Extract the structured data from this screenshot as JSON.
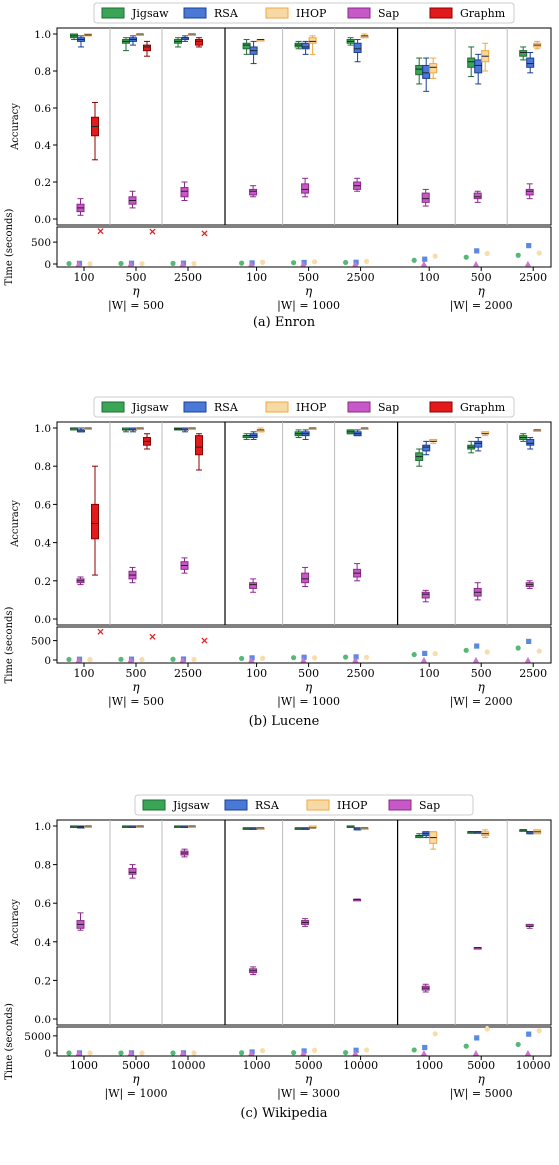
{
  "colors": {
    "jigsaw": "#3aa655",
    "rsa": "#4a78d6",
    "ihop": "#f7d9a6",
    "ihop_edge": "#f0a640",
    "sap": "#c758c7",
    "graphm": "#e31a1c",
    "separator_light": "#bbbbbb"
  },
  "chart_data": [
    {
      "type": "box",
      "title": "",
      "caption": "(a)  Enron",
      "legend": [
        "Jigsaw",
        "RSA",
        "IHOP",
        "Sap",
        "Graphm"
      ],
      "legend_position": "top",
      "accuracy_ylabel": "Accuracy",
      "time_ylabel": "Time (seconds)",
      "xlabel": "η",
      "accuracy_ylim": [
        0,
        1
      ],
      "accuracy_ticks": [
        "0.0",
        "0.2",
        "0.4",
        "0.6",
        "0.8",
        "1.0"
      ],
      "time_ylim": [
        0,
        800
      ],
      "time_ticks": [
        "0",
        "500"
      ],
      "groups": [
        {
          "label": "|W| = 500",
          "eta": [
            "100",
            "500",
            "2500"
          ]
        },
        {
          "label": "|W| = 1000",
          "eta": [
            "100",
            "500",
            "2500"
          ]
        },
        {
          "label": "|W| = 2000",
          "eta": [
            "100",
            "500",
            "2500"
          ]
        }
      ],
      "accuracy": {
        "Jigsaw": [
          [
            0.99,
            0.98,
            1.0,
            0.97,
            1.0
          ],
          [
            0.96,
            0.95,
            0.97,
            0.91,
            0.98
          ],
          [
            0.96,
            0.95,
            0.97,
            0.93,
            0.98
          ],
          [
            0.94,
            0.92,
            0.95,
            0.89,
            0.97
          ],
          [
            0.94,
            0.93,
            0.95,
            0.92,
            0.96
          ],
          [
            0.96,
            0.95,
            0.97,
            0.94,
            0.98
          ],
          [
            0.81,
            0.78,
            0.83,
            0.73,
            0.87
          ],
          [
            0.85,
            0.82,
            0.87,
            0.77,
            0.93
          ],
          [
            0.9,
            0.88,
            0.91,
            0.86,
            0.93
          ]
        ],
        "RSA": [
          [
            0.97,
            0.96,
            0.98,
            0.93,
            0.99
          ],
          [
            0.97,
            0.96,
            0.98,
            0.94,
            0.99
          ],
          [
            0.98,
            0.97,
            0.98,
            0.96,
            0.99
          ],
          [
            0.91,
            0.89,
            0.93,
            0.84,
            0.96
          ],
          [
            0.93,
            0.92,
            0.95,
            0.89,
            0.96
          ],
          [
            0.92,
            0.9,
            0.95,
            0.85,
            0.97
          ],
          [
            0.79,
            0.76,
            0.83,
            0.69,
            0.87
          ],
          [
            0.83,
            0.79,
            0.86,
            0.73,
            0.89
          ],
          [
            0.84,
            0.82,
            0.87,
            0.79,
            0.9
          ]
        ],
        "IHOP": [
          [
            0.995,
            0.99,
            1.0,
            0.99,
            1.0
          ],
          [
            1.0,
            1.0,
            1.0,
            1.0,
            1.0
          ],
          [
            1.0,
            1.0,
            1.0,
            1.0,
            1.0
          ],
          [
            0.97,
            0.97,
            0.97,
            0.97,
            0.97
          ],
          [
            0.96,
            0.95,
            0.98,
            0.89,
            0.99
          ],
          [
            0.99,
            0.98,
            0.99,
            0.98,
            1.0
          ],
          [
            0.82,
            0.79,
            0.84,
            0.76,
            0.87
          ],
          [
            0.88,
            0.85,
            0.91,
            0.8,
            0.95
          ],
          [
            0.94,
            0.93,
            0.95,
            0.92,
            0.96
          ]
        ],
        "Sap": [
          [
            0.06,
            0.04,
            0.08,
            0.02,
            0.11
          ],
          [
            0.1,
            0.08,
            0.12,
            0.06,
            0.15
          ],
          [
            0.15,
            0.12,
            0.17,
            0.1,
            0.2
          ],
          [
            0.15,
            0.13,
            0.16,
            0.12,
            0.18
          ],
          [
            0.16,
            0.14,
            0.19,
            0.12,
            0.22
          ],
          [
            0.18,
            0.16,
            0.2,
            0.15,
            0.22
          ],
          [
            0.11,
            0.09,
            0.14,
            0.07,
            0.16
          ],
          [
            0.12,
            0.11,
            0.14,
            0.09,
            0.15
          ],
          [
            0.15,
            0.13,
            0.16,
            0.11,
            0.19
          ]
        ],
        "Graphm": [
          [
            0.5,
            0.45,
            0.55,
            0.32,
            0.63
          ],
          [
            0.93,
            0.91,
            0.94,
            0.88,
            0.96
          ],
          [
            0.96,
            0.94,
            0.97,
            0.93,
            0.98
          ],
          null,
          null,
          null,
          null,
          null,
          null
        ]
      },
      "time": {
        "Jigsaw": [
          10,
          12,
          14,
          20,
          30,
          35,
          85,
          155,
          200
        ],
        "RSA": [
          15,
          18,
          20,
          25,
          35,
          40,
          110,
          300,
          420
        ],
        "IHOP": [
          5,
          7,
          10,
          40,
          50,
          60,
          180,
          240,
          250
        ],
        "Sap": [
          2,
          2,
          2,
          3,
          3,
          3,
          3,
          3,
          3
        ],
        "Graphm": [
          750,
          740,
          700,
          null,
          null,
          null,
          null,
          null,
          null
        ]
      }
    },
    {
      "type": "box",
      "title": "",
      "caption": "(b)  Lucene",
      "legend": [
        "Jigsaw",
        "RSA",
        "IHOP",
        "Sap",
        "Graphm"
      ],
      "legend_position": "top",
      "accuracy_ylabel": "Accuracy",
      "time_ylabel": "Time (seconds)",
      "xlabel": "η",
      "accuracy_ylim": [
        0,
        1
      ],
      "accuracy_ticks": [
        "0.0",
        "0.2",
        "0.4",
        "0.6",
        "0.8",
        "1.0"
      ],
      "time_ylim": [
        0,
        800
      ],
      "time_ticks": [
        "0",
        "500"
      ],
      "groups": [
        {
          "label": "|W| = 500",
          "eta": [
            "100",
            "500",
            "2500"
          ]
        },
        {
          "label": "|W| = 1000",
          "eta": [
            "100",
            "500",
            "2500"
          ]
        },
        {
          "label": "|W| = 2000",
          "eta": [
            "100",
            "500",
            "2500"
          ]
        }
      ],
      "accuracy": {
        "Jigsaw": [
          [
            1.0,
            0.99,
            1.0,
            0.99,
            1.0
          ],
          [
            0.99,
            0.99,
            1.0,
            0.98,
            1.0
          ],
          [
            0.995,
            0.99,
            1.0,
            0.99,
            1.0
          ],
          [
            0.96,
            0.95,
            0.96,
            0.94,
            0.97
          ],
          [
            0.97,
            0.96,
            0.98,
            0.95,
            0.99
          ],
          [
            0.98,
            0.97,
            0.99,
            0.97,
            0.99
          ],
          [
            0.85,
            0.83,
            0.87,
            0.8,
            0.89
          ],
          [
            0.9,
            0.89,
            0.91,
            0.87,
            0.93
          ],
          [
            0.95,
            0.94,
            0.96,
            0.93,
            0.97
          ]
        ],
        "RSA": [
          [
            0.99,
            0.98,
            0.99,
            0.98,
            1.0
          ],
          [
            0.99,
            0.99,
            1.0,
            0.98,
            1.0
          ],
          [
            0.99,
            0.99,
            1.0,
            0.98,
            1.0
          ],
          [
            0.96,
            0.95,
            0.97,
            0.94,
            0.98
          ],
          [
            0.97,
            0.96,
            0.98,
            0.94,
            0.99
          ],
          [
            0.97,
            0.96,
            0.98,
            0.96,
            0.99
          ],
          [
            0.9,
            0.88,
            0.91,
            0.86,
            0.93
          ],
          [
            0.92,
            0.9,
            0.93,
            0.88,
            0.95
          ],
          [
            0.92,
            0.91,
            0.94,
            0.89,
            0.95
          ]
        ],
        "IHOP": [
          [
            1.0,
            1.0,
            1.0,
            1.0,
            1.0
          ],
          [
            1.0,
            1.0,
            1.0,
            1.0,
            1.0
          ],
          [
            1.0,
            1.0,
            1.0,
            1.0,
            1.0
          ],
          [
            0.99,
            0.98,
            0.99,
            0.98,
            1.0
          ],
          [
            1.0,
            1.0,
            1.0,
            1.0,
            1.0
          ],
          [
            1.0,
            1.0,
            1.0,
            1.0,
            1.0
          ],
          [
            0.93,
            0.93,
            0.94,
            0.92,
            0.94
          ],
          [
            0.97,
            0.97,
            0.98,
            0.96,
            0.98
          ],
          [
            0.99,
            0.99,
            0.99,
            0.99,
            0.99
          ]
        ],
        "Sap": [
          [
            0.2,
            0.19,
            0.21,
            0.18,
            0.22
          ],
          [
            0.23,
            0.21,
            0.25,
            0.19,
            0.27
          ],
          [
            0.28,
            0.26,
            0.3,
            0.24,
            0.32
          ],
          [
            0.18,
            0.16,
            0.19,
            0.14,
            0.21
          ],
          [
            0.21,
            0.19,
            0.24,
            0.17,
            0.27
          ],
          [
            0.24,
            0.22,
            0.26,
            0.2,
            0.29
          ],
          [
            0.13,
            0.11,
            0.14,
            0.09,
            0.15
          ],
          [
            0.14,
            0.12,
            0.16,
            0.1,
            0.19
          ],
          [
            0.18,
            0.17,
            0.19,
            0.16,
            0.2
          ]
        ],
        "Graphm": [
          [
            0.5,
            0.42,
            0.6,
            0.23,
            0.8
          ],
          [
            0.93,
            0.91,
            0.95,
            0.89,
            0.97
          ],
          [
            0.9,
            0.86,
            0.96,
            0.78,
            0.97
          ],
          null,
          null,
          null,
          null,
          null,
          null
        ]
      },
      "time": {
        "Jigsaw": [
          15,
          18,
          20,
          40,
          60,
          75,
          140,
          250,
          310
        ],
        "RSA": [
          20,
          22,
          25,
          55,
          70,
          80,
          170,
          360,
          480
        ],
        "IHOP": [
          10,
          12,
          15,
          45,
          55,
          70,
          165,
          210,
          230
        ],
        "Sap": [
          2,
          2,
          2,
          3,
          3,
          3,
          3,
          3,
          3
        ],
        "Graphm": [
          730,
          600,
          500,
          null,
          null,
          null,
          null,
          null,
          null
        ]
      }
    },
    {
      "type": "box",
      "title": "",
      "caption": "(c)  Wikipedia",
      "legend": [
        "Jigsaw",
        "RSA",
        "IHOP",
        "Sap"
      ],
      "legend_position": "top",
      "accuracy_ylabel": "Accuracy",
      "time_ylabel": "Time (seconds)",
      "xlabel": "η",
      "accuracy_ylim": [
        0,
        1
      ],
      "accuracy_ticks": [
        "0.0",
        "0.2",
        "0.4",
        "0.6",
        "0.8",
        "1.0"
      ],
      "time_ylim": [
        0,
        7000
      ],
      "time_ticks": [
        "0",
        "5000"
      ],
      "groups": [
        {
          "label": "|W| = 1000",
          "eta": [
            "1000",
            "5000",
            "10000"
          ]
        },
        {
          "label": "|W| = 3000",
          "eta": [
            "1000",
            "5000",
            "10000"
          ]
        },
        {
          "label": "|W| = 5000",
          "eta": [
            "1000",
            "5000",
            "10000"
          ]
        }
      ],
      "accuracy": {
        "Jigsaw": [
          [
            1.0,
            1.0,
            1.0,
            1.0,
            1.0
          ],
          [
            1.0,
            1.0,
            1.0,
            1.0,
            1.0
          ],
          [
            1.0,
            1.0,
            1.0,
            1.0,
            1.0
          ],
          [
            0.99,
            0.99,
            0.99,
            0.99,
            0.99
          ],
          [
            0.99,
            0.99,
            0.99,
            0.99,
            0.99
          ],
          [
            1.0,
            1.0,
            1.0,
            1.0,
            1.0
          ],
          [
            0.95,
            0.94,
            0.95,
            0.94,
            0.96
          ],
          [
            0.97,
            0.97,
            0.97,
            0.97,
            0.97
          ],
          [
            0.98,
            0.98,
            0.98,
            0.98,
            0.98
          ]
        ],
        "RSA": [
          [
            0.995,
            0.99,
            1.0,
            0.99,
            1.0
          ],
          [
            1.0,
            1.0,
            1.0,
            1.0,
            1.0
          ],
          [
            1.0,
            1.0,
            1.0,
            1.0,
            1.0
          ],
          [
            0.99,
            0.99,
            0.99,
            0.99,
            0.99
          ],
          [
            0.99,
            0.99,
            0.99,
            0.99,
            0.99
          ],
          [
            0.99,
            0.98,
            0.99,
            0.98,
            0.99
          ],
          [
            0.96,
            0.95,
            0.97,
            0.94,
            0.97
          ],
          [
            0.97,
            0.97,
            0.97,
            0.97,
            0.97
          ],
          [
            0.97,
            0.96,
            0.97,
            0.96,
            0.97
          ]
        ],
        "IHOP": [
          [
            1.0,
            1.0,
            1.0,
            1.0,
            1.0
          ],
          [
            1.0,
            1.0,
            1.0,
            1.0,
            1.0
          ],
          [
            1.0,
            1.0,
            1.0,
            1.0,
            1.0
          ],
          [
            0.99,
            0.99,
            0.99,
            0.99,
            0.99
          ],
          [
            0.99,
            0.99,
            1.0,
            0.99,
            1.0
          ],
          [
            0.99,
            0.99,
            0.99,
            0.99,
            0.99
          ],
          [
            0.94,
            0.91,
            0.97,
            0.88,
            0.97
          ],
          [
            0.96,
            0.95,
            0.97,
            0.94,
            0.98
          ],
          [
            0.97,
            0.96,
            0.98,
            0.96,
            0.98
          ]
        ],
        "Sap": [
          [
            0.49,
            0.47,
            0.51,
            0.46,
            0.55
          ],
          [
            0.76,
            0.75,
            0.78,
            0.73,
            0.8
          ],
          [
            0.86,
            0.85,
            0.87,
            0.84,
            0.88
          ],
          [
            0.25,
            0.24,
            0.26,
            0.23,
            0.27
          ],
          [
            0.5,
            0.49,
            0.51,
            0.48,
            0.52
          ],
          [
            0.62,
            0.62,
            0.62,
            0.62,
            0.62
          ],
          [
            0.16,
            0.15,
            0.17,
            0.14,
            0.18
          ],
          [
            0.37,
            0.37,
            0.37,
            0.37,
            0.37
          ],
          [
            0.48,
            0.48,
            0.49,
            0.47,
            0.49
          ]
        ],
        "Graphm": null
      },
      "time": {
        "Jigsaw": [
          10,
          15,
          20,
          80,
          100,
          120,
          900,
          2000,
          2500
        ],
        "RSA": [
          30,
          40,
          50,
          300,
          600,
          800,
          1600,
          4400,
          5500
        ],
        "IHOP": [
          20,
          30,
          40,
          700,
          800,
          900,
          5600,
          7000,
          6500
        ],
        "Sap": [
          2,
          2,
          2,
          3,
          3,
          3,
          5,
          5,
          5
        ],
        "Graphm": null
      }
    }
  ]
}
